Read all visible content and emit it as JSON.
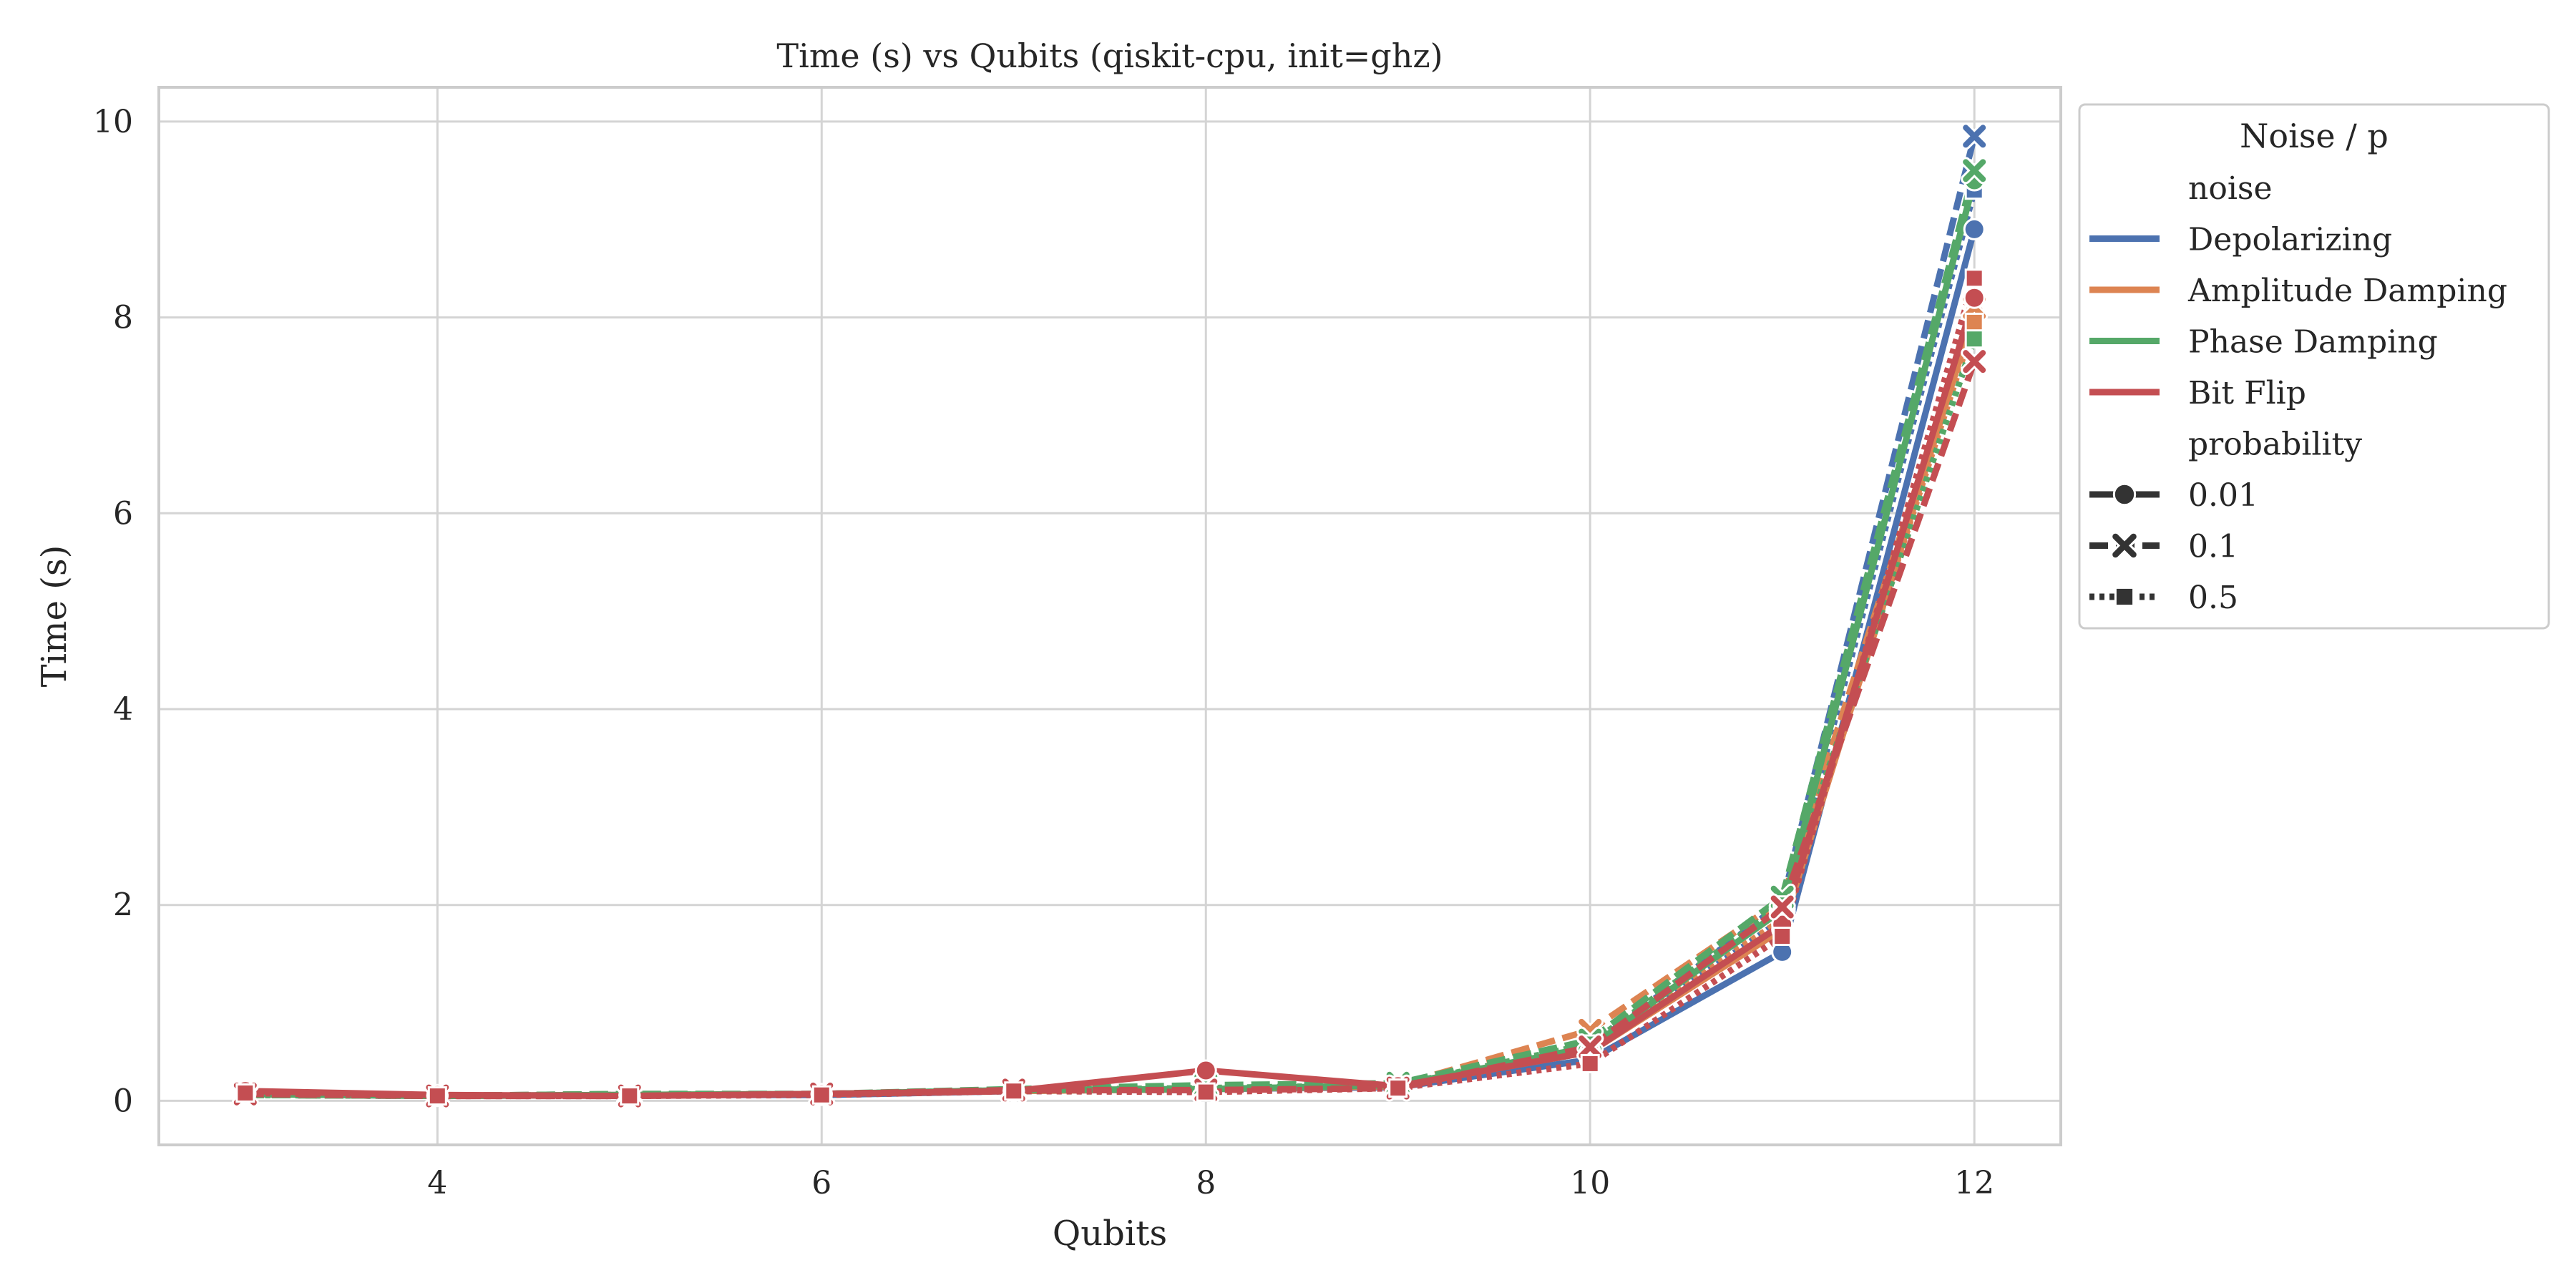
{
  "chart_data": {
    "type": "line",
    "title": "Time (s) vs Qubits (qiskit-cpu, init=ghz)",
    "xlabel": "Qubits",
    "ylabel": "Time (s)",
    "xlim": [
      2.55,
      12.45
    ],
    "ylim": [
      -0.45,
      10.35
    ],
    "xticks": [
      4,
      6,
      8,
      10,
      12
    ],
    "yticks": [
      0,
      2,
      4,
      6,
      8,
      10
    ],
    "grid": true,
    "x": [
      3,
      4,
      5,
      6,
      7,
      8,
      9,
      10,
      11,
      12
    ],
    "legend": {
      "placement": "outside-right",
      "title": "Noise / p",
      "hue_header": "noise",
      "style_header": "probability",
      "noise_entries": [
        "Depolarizing",
        "Amplitude Damping",
        "Phase Damping",
        "Bit Flip"
      ],
      "probability_entries": [
        "0.01",
        "0.1",
        "0.5"
      ]
    },
    "noise_colors": {
      "Depolarizing": "#4c72b0",
      "Amplitude Damping": "#dd8452",
      "Phase Damping": "#55a868",
      "Bit Flip": "#c44e52"
    },
    "probability_styles": {
      "0.01": {
        "dash": "solid",
        "marker": "circle"
      },
      "0.1": {
        "dash": "dashed",
        "marker": "x"
      },
      "0.5": {
        "dash": "dotted",
        "marker": "square"
      }
    },
    "series": [
      {
        "noise": "Depolarizing",
        "probability": "0.01",
        "values": [
          0.07,
          0.05,
          0.06,
          0.06,
          0.1,
          0.12,
          0.14,
          0.42,
          1.52,
          8.9
        ]
      },
      {
        "noise": "Depolarizing",
        "probability": "0.1",
        "values": [
          0.06,
          0.05,
          0.07,
          0.07,
          0.11,
          0.11,
          0.15,
          0.55,
          2.02,
          9.85
        ]
      },
      {
        "noise": "Depolarizing",
        "probability": "0.5",
        "values": [
          0.06,
          0.05,
          0.06,
          0.06,
          0.1,
          0.1,
          0.14,
          0.5,
          1.85,
          9.3
        ]
      },
      {
        "noise": "Amplitude Damping",
        "probability": "0.01",
        "values": [
          0.07,
          0.05,
          0.06,
          0.07,
          0.1,
          0.12,
          0.15,
          0.5,
          1.75,
          8.05
        ]
      },
      {
        "noise": "Amplitude Damping",
        "probability": "0.1",
        "values": [
          0.06,
          0.05,
          0.07,
          0.07,
          0.11,
          0.13,
          0.16,
          0.72,
          2.05,
          8.1
        ]
      },
      {
        "noise": "Amplitude Damping",
        "probability": "0.5",
        "values": [
          0.06,
          0.05,
          0.06,
          0.07,
          0.1,
          0.11,
          0.15,
          0.55,
          1.85,
          7.95
        ]
      },
      {
        "noise": "Phase Damping",
        "probability": "0.01",
        "values": [
          0.07,
          0.05,
          0.06,
          0.07,
          0.11,
          0.12,
          0.16,
          0.55,
          1.95,
          9.4
        ]
      },
      {
        "noise": "Phase Damping",
        "probability": "0.1",
        "values": [
          0.06,
          0.05,
          0.07,
          0.07,
          0.12,
          0.16,
          0.18,
          0.62,
          2.08,
          9.5
        ]
      },
      {
        "noise": "Phase Damping",
        "probability": "0.5",
        "values": [
          0.06,
          0.05,
          0.06,
          0.07,
          0.11,
          0.13,
          0.16,
          0.58,
          2.0,
          7.78
        ]
      },
      {
        "noise": "Bit Flip",
        "probability": "0.01",
        "values": [
          0.1,
          0.06,
          0.05,
          0.07,
          0.1,
          0.31,
          0.15,
          0.5,
          1.8,
          8.2
        ]
      },
      {
        "noise": "Bit Flip",
        "probability": "0.1",
        "values": [
          0.07,
          0.05,
          0.05,
          0.07,
          0.11,
          0.11,
          0.13,
          0.55,
          1.98,
          7.55
        ]
      },
      {
        "noise": "Bit Flip",
        "probability": "0.5",
        "values": [
          0.08,
          0.05,
          0.05,
          0.06,
          0.1,
          0.09,
          0.13,
          0.38,
          1.68,
          8.4
        ]
      }
    ]
  }
}
